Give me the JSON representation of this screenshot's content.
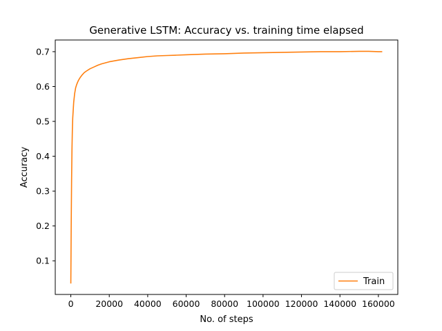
{
  "chart_data": {
    "type": "line",
    "title": "Generative LSTM: Accuracy vs. training time elapsed",
    "xlabel": "No. of steps",
    "ylabel": "Accuracy",
    "xlim": [
      -8100,
      170100
    ],
    "ylim": [
      0.0035,
      0.7335
    ],
    "x_ticks": [
      0,
      20000,
      40000,
      60000,
      80000,
      100000,
      120000,
      140000,
      160000
    ],
    "x_tick_labels": [
      "0",
      "20000",
      "40000",
      "60000",
      "80000",
      "100000",
      "120000",
      "140000",
      "160000"
    ],
    "y_ticks": [
      0.1,
      0.2,
      0.3,
      0.4,
      0.5,
      0.6,
      0.7
    ],
    "y_tick_labels": [
      "0.1",
      "0.2",
      "0.3",
      "0.4",
      "0.5",
      "0.6",
      "0.7"
    ],
    "grid": false,
    "legend_position": "lower-right",
    "series": [
      {
        "name": "Train",
        "color": "#ff7f0e",
        "x": [
          0,
          200,
          400,
          600,
          800,
          1000,
          1500,
          2000,
          2500,
          3000,
          3500,
          4000,
          5000,
          6000,
          7000,
          8000,
          10000,
          12000,
          14000,
          16000,
          18000,
          20000,
          25000,
          30000,
          35000,
          40000,
          45000,
          50000,
          55000,
          60000,
          70000,
          80000,
          90000,
          100000,
          110000,
          120000,
          130000,
          140000,
          150000,
          155000,
          160000,
          162000
        ],
        "y": [
          0.035,
          0.2,
          0.33,
          0.42,
          0.475,
          0.51,
          0.555,
          0.58,
          0.596,
          0.605,
          0.612,
          0.618,
          0.627,
          0.634,
          0.64,
          0.644,
          0.651,
          0.656,
          0.661,
          0.665,
          0.668,
          0.671,
          0.676,
          0.68,
          0.683,
          0.686,
          0.688,
          0.689,
          0.69,
          0.691,
          0.693,
          0.694,
          0.696,
          0.697,
          0.698,
          0.699,
          0.7,
          0.7,
          0.701,
          0.701,
          0.7,
          0.7
        ]
      }
    ]
  }
}
